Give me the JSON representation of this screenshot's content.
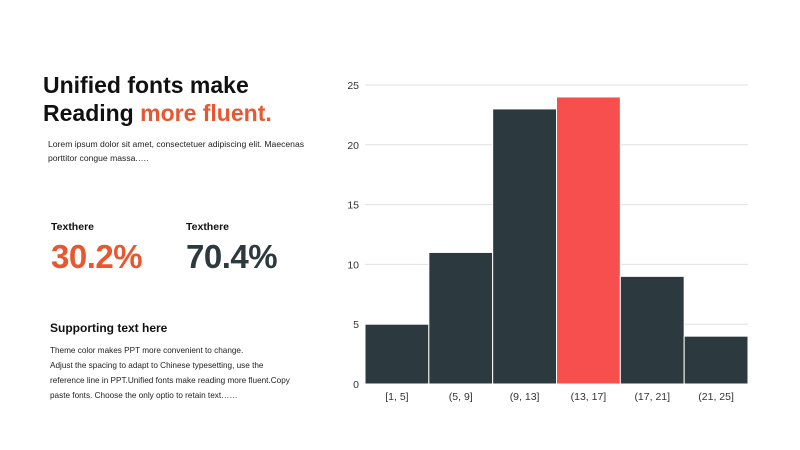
{
  "headline": {
    "line1": "Unified fonts make",
    "line2_plain": "Reading ",
    "line2_accent": "more fluent."
  },
  "intro_text": "Lorem ipsum dolor sit amet, consectetuer adipiscing elit. Maecenas porttitor congue massa.….",
  "stats": [
    {
      "label": "Texthere",
      "value": "30.2%",
      "color": "#e8572f"
    },
    {
      "label": "Texthere",
      "value": "70.4%",
      "color": "#2c3a40"
    }
  ],
  "support": {
    "title": "Supporting text here",
    "lines": [
      "Theme  color makes PPT more convenient  to change.",
      "Adjust the spacing to adapt to Chinese typesetting, use the",
      "reference line in PPT.Unified  fonts make reading more fluent.Copy",
      "paste fonts. Choose the only optio to retain text……"
    ]
  },
  "colors": {
    "accent": "#e8572f",
    "dark": "#2c3a40",
    "highlight_bar": "#f74e4e"
  },
  "chart_data": {
    "type": "bar",
    "categories": [
      "[1, 5]",
      "(5, 9]",
      "(9, 13]",
      "(13, 17]",
      "(17, 21]",
      "(21, 25]"
    ],
    "values": [
      5,
      11,
      23,
      24,
      9,
      4
    ],
    "highlight_index": 3,
    "ylim": [
      0,
      25
    ],
    "yticks": [
      0,
      5,
      10,
      15,
      20,
      25
    ],
    "grid": true,
    "title": "",
    "xlabel": "",
    "ylabel": ""
  }
}
